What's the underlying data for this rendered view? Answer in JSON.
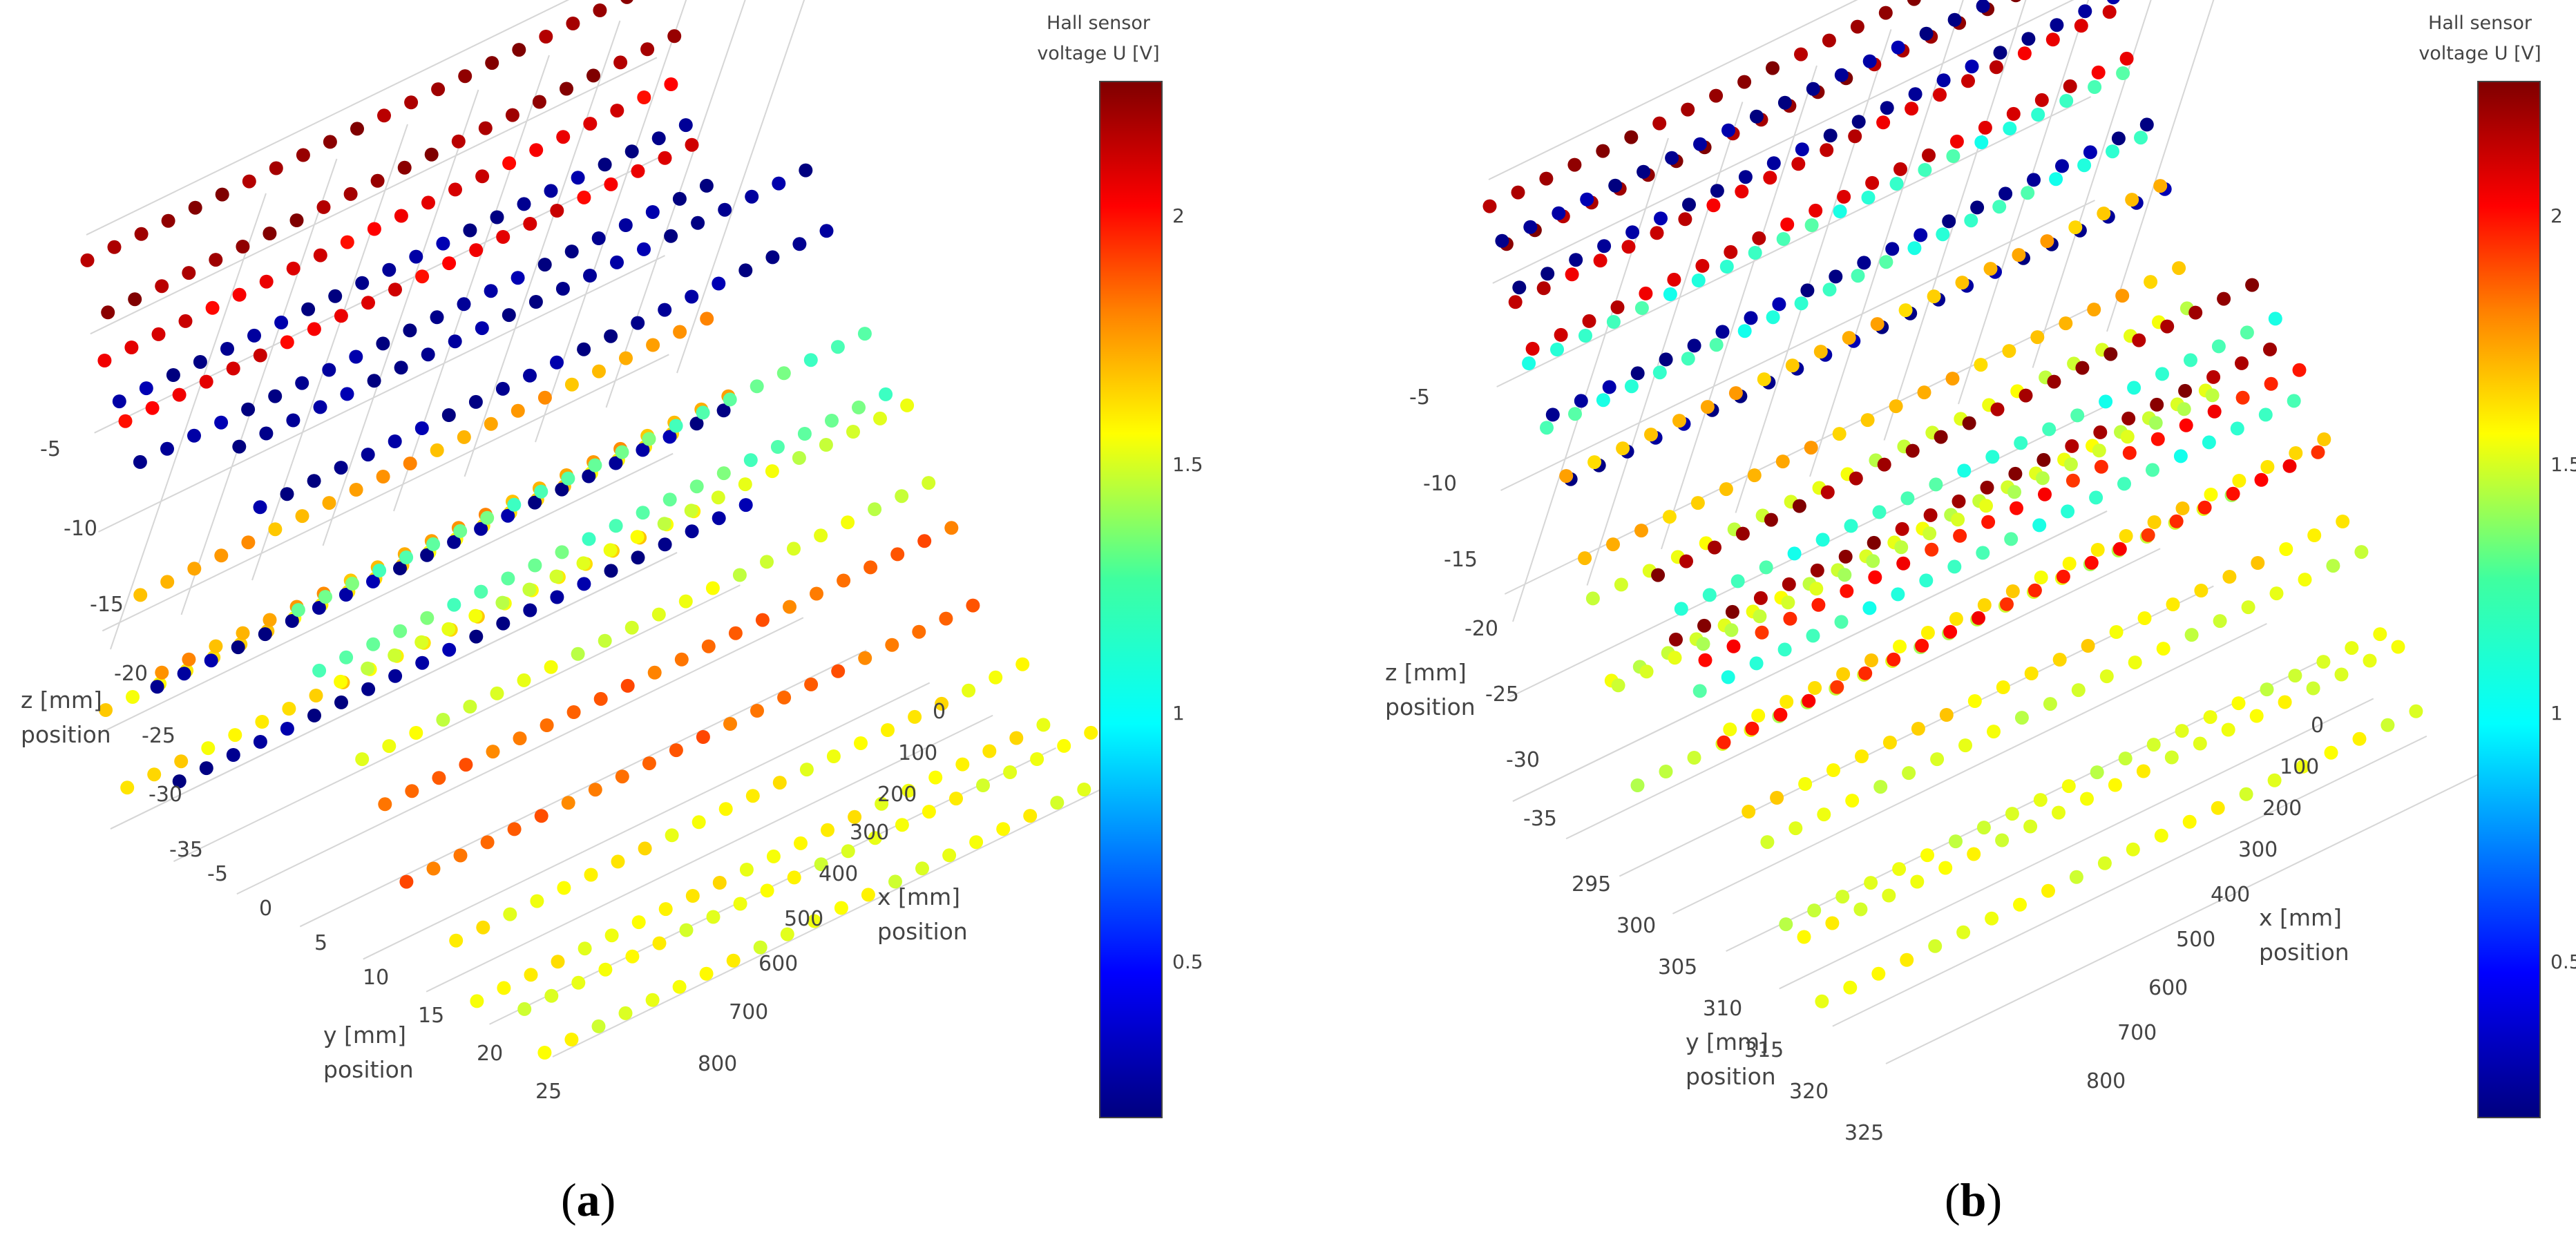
{
  "colorbar": {
    "title_line1": "Hall sensor",
    "title_line2": "voltage U [V]",
    "range": [
      0.15,
      2.3
    ],
    "colorscale": [
      "#00007f",
      "#0000ff",
      "#00ffff",
      "#7fff7f",
      "#ffff00",
      "#ff7f00",
      "#ff0000",
      "#7f0000"
    ]
  },
  "chart_data": [
    {
      "type": "scatter3d",
      "panel": "a",
      "panel_label": [
        "(",
        "a",
        ")"
      ],
      "colorbar_ticks": [
        "0.5",
        "1",
        "1.5",
        "2"
      ],
      "colorbar_tick_values": [
        0.5,
        1,
        1.5,
        2
      ],
      "axes": {
        "x": {
          "label": "x [mm]",
          "label2": "position",
          "ticks": [
            "0",
            "100",
            "200",
            "300",
            "400",
            "500",
            "600",
            "700",
            "800"
          ],
          "range": [
            0,
            800
          ]
        },
        "y": {
          "label": "y [mm]",
          "label2": "position",
          "ticks": [
            "-5",
            "0",
            "5",
            "10",
            "15",
            "20",
            "25"
          ],
          "range": [
            -5,
            28
          ]
        },
        "z": {
          "label": "z [mm]",
          "label2": "position",
          "ticks": [
            "-5",
            "-10",
            "-15",
            "-20",
            "-25",
            "-30",
            "-35"
          ],
          "range": [
            -37,
            -2
          ]
        }
      },
      "stripes": [
        {
          "y": [
            -5,
            0
          ],
          "z": [
            -3.5,
            -6
          ],
          "u": 2.25
        },
        {
          "y": [
            -4,
            0
          ],
          "z": [
            -9,
            -12
          ],
          "u": 2.05
        },
        {
          "y": [
            -3,
            0
          ],
          "z": [
            -11,
            -14
          ],
          "u": 0.2
        },
        {
          "y": [
            -2,
            0
          ],
          "z": [
            -22,
            -26
          ],
          "u": 1.6
        },
        {
          "y": [
            -1,
            0
          ],
          "z": [
            -27,
            -32
          ],
          "u": 0.2
        },
        {
          "y": [
            -5,
            0
          ],
          "z": [
            -30,
            -34
          ],
          "u": 1.45
        },
        {
          "y": [
            6,
            5
          ],
          "z": [
            -10,
            -13
          ],
          "u": 0.2
        },
        {
          "y": [
            10,
            5
          ],
          "z": [
            -18,
            -21
          ],
          "u": 1.0
        },
        {
          "y": [
            13,
            5
          ],
          "z": [
            -21,
            -25
          ],
          "u": 1.3
        },
        {
          "y": [
            16,
            5
          ],
          "z": [
            -27,
            -31
          ],
          "u": 1.75
        },
        {
          "y": [
            21,
            5
          ],
          "z": [
            -33,
            -36
          ],
          "u": 1.4
        },
        {
          "y": [
            26,
            5
          ],
          "z": [
            -35,
            -37
          ],
          "u": 1.35
        }
      ]
    },
    {
      "type": "scatter3d",
      "panel": "b",
      "panel_label": [
        "(",
        "b",
        ")"
      ],
      "colorbar_ticks": [
        "0.5",
        "1",
        "1.5",
        "2"
      ],
      "colorbar_tick_values": [
        0.5,
        1,
        1.5,
        2
      ],
      "axes": {
        "x": {
          "label": "x [mm]",
          "label2": "position",
          "ticks": [
            "0",
            "100",
            "200",
            "300",
            "400",
            "500",
            "600",
            "700",
            "800"
          ],
          "range": [
            0,
            800
          ]
        },
        "y": {
          "label": "y [mm]",
          "label2": "position",
          "ticks": [
            "295",
            "300",
            "305",
            "310",
            "315",
            "320",
            "325"
          ],
          "range": [
            295,
            328
          ]
        },
        "z": {
          "label": "z [mm]",
          "label2": "position",
          "ticks": [
            "-5",
            "-10",
            "-15",
            "-20",
            "-25",
            "-30",
            "-35"
          ],
          "range": [
            -37,
            -2
          ]
        }
      },
      "stripes": [
        {
          "y": [
            295,
            0
          ],
          "z": [
            -3.5,
            -5
          ],
          "u": 2.25
        },
        {
          "y": [
            296,
            0
          ],
          "z": [
            -5,
            -7
          ],
          "u": 0.2
        },
        {
          "y": [
            297,
            0
          ],
          "z": [
            -8,
            -10
          ],
          "u": 2.1
        },
        {
          "y": [
            298,
            0
          ],
          "z": [
            -11,
            -14
          ],
          "u": 0.9
        },
        {
          "y": [
            300,
            0
          ],
          "z": [
            -13,
            -16
          ],
          "u": 0.2
        },
        {
          "y": [
            301,
            0
          ],
          "z": [
            -16,
            -20
          ],
          "u": 1.55
        },
        {
          "y": [
            303,
            0
          ],
          "z": [
            -22,
            -26
          ],
          "u": 1.3
        },
        {
          "y": [
            305,
            0
          ],
          "z": [
            -26,
            -31
          ],
          "u": 1.25
        },
        {
          "y": [
            309,
            0
          ],
          "z": [
            -18,
            -21
          ],
          "u": 2.25
        },
        {
          "y": [
            311,
            0
          ],
          "z": [
            -19,
            -23
          ],
          "u": 0.9
        },
        {
          "y": [
            313,
            0
          ],
          "z": [
            -21,
            -25
          ],
          "u": 1.95
        },
        {
          "y": [
            315,
            0
          ],
          "z": [
            -24,
            -28
          ],
          "u": 1.45
        },
        {
          "y": [
            318,
            0
          ],
          "z": [
            -29,
            -33
          ],
          "u": 1.3
        },
        {
          "y": [
            321,
            0
          ],
          "z": [
            -33,
            -36
          ],
          "u": 1.35
        }
      ]
    }
  ]
}
